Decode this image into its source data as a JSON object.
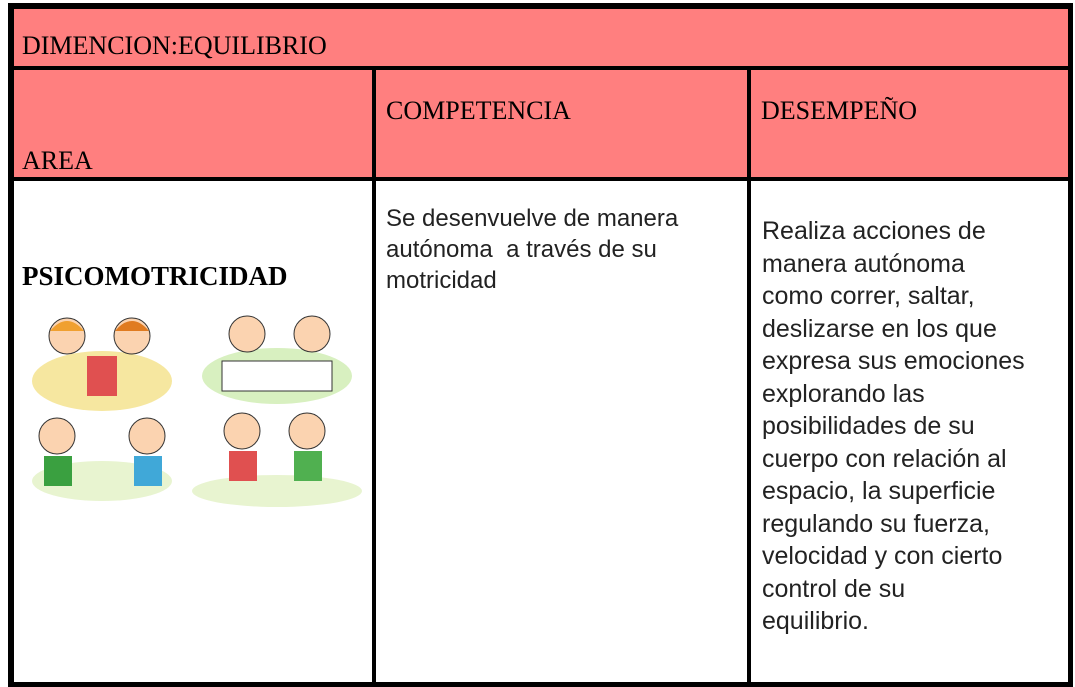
{
  "header": {
    "title": "DIMENCION:EQUILIBRIO"
  },
  "table": {
    "columns": [
      "AREA",
      "COMPETENCIA",
      "DESEMPEÑO"
    ],
    "rows": [
      [
        "PSICOMOTRICIDAD",
        [
          "Se desenvuelve de manera",
          "autónoma  a través de su",
          "motricidad"
        ],
        [
          "Realiza acciones de",
          "manera autónoma",
          "como correr, saltar,",
          "deslizarse en los que",
          "expresa sus emociones",
          "explorando las",
          "posibilidades de su",
          "cuerpo con relación al",
          "espacio, la superficie",
          "regulando su fuerza,",
          "velocidad y con cierto",
          "control de su",
          "equilibrio."
        ]
      ]
    ]
  }
}
